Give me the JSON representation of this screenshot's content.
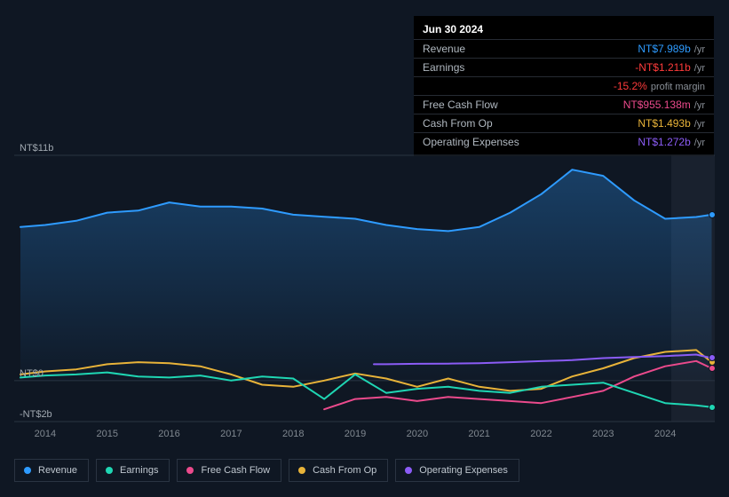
{
  "chart": {
    "type": "line-area",
    "x_years": [
      "2014",
      "2015",
      "2016",
      "2017",
      "2018",
      "2019",
      "2020",
      "2021",
      "2022",
      "2023",
      "2024"
    ],
    "x_start": 2013.5,
    "x_end": 2024.8,
    "future_shade_from": 2024.1,
    "y_labels": [
      {
        "text": "NT$11b",
        "val": 11
      },
      {
        "text": "NT$0",
        "val": 0
      },
      {
        "text": "-NT$2b",
        "val": -2
      }
    ],
    "y_min": -2,
    "y_max": 11,
    "colors": {
      "revenue": "#2e9bff",
      "earnings": "#1fd6b3",
      "fcf": "#eb4a8c",
      "cfo": "#e8b339",
      "opex": "#8b5cf6",
      "bg": "#0f1723",
      "grid": "#2a3442",
      "area_top": "rgba(46,155,255,0.30)",
      "area_bottom": "rgba(46,155,255,0.02)"
    },
    "line_width": 2,
    "series": {
      "revenue": {
        "label": "Revenue",
        "data": [
          [
            2013.6,
            7.5
          ],
          [
            2014,
            7.6
          ],
          [
            2014.5,
            7.8
          ],
          [
            2015,
            8.2
          ],
          [
            2015.5,
            8.3
          ],
          [
            2016,
            8.7
          ],
          [
            2016.5,
            8.5
          ],
          [
            2017,
            8.5
          ],
          [
            2017.5,
            8.4
          ],
          [
            2018,
            8.1
          ],
          [
            2018.5,
            8.0
          ],
          [
            2019,
            7.9
          ],
          [
            2019.5,
            7.6
          ],
          [
            2020,
            7.4
          ],
          [
            2020.5,
            7.3
          ],
          [
            2021,
            7.5
          ],
          [
            2021.5,
            8.2
          ],
          [
            2022,
            9.1
          ],
          [
            2022.25,
            9.7
          ],
          [
            2022.5,
            10.3
          ],
          [
            2023,
            10.0
          ],
          [
            2023.5,
            8.8
          ],
          [
            2024,
            7.9
          ],
          [
            2024.5,
            7.989
          ],
          [
            2024.75,
            8.1
          ]
        ]
      },
      "earnings": {
        "label": "Earnings",
        "data": [
          [
            2013.6,
            0.15
          ],
          [
            2014,
            0.25
          ],
          [
            2014.5,
            0.3
          ],
          [
            2015,
            0.4
          ],
          [
            2015.5,
            0.2
          ],
          [
            2016,
            0.15
          ],
          [
            2016.5,
            0.25
          ],
          [
            2017,
            0.0
          ],
          [
            2017.5,
            0.2
          ],
          [
            2018,
            0.1
          ],
          [
            2018.5,
            -0.9
          ],
          [
            2019,
            0.3
          ],
          [
            2019.5,
            -0.6
          ],
          [
            2020,
            -0.4
          ],
          [
            2020.5,
            -0.3
          ],
          [
            2021,
            -0.5
          ],
          [
            2021.5,
            -0.6
          ],
          [
            2022,
            -0.3
          ],
          [
            2022.5,
            -0.2
          ],
          [
            2023,
            -0.1
          ],
          [
            2023.5,
            -0.6
          ],
          [
            2024,
            -1.1
          ],
          [
            2024.5,
            -1.211
          ],
          [
            2024.75,
            -1.3
          ]
        ]
      },
      "fcf": {
        "label": "Free Cash Flow",
        "data": [
          [
            2018.5,
            -1.4
          ],
          [
            2019,
            -0.9
          ],
          [
            2019.5,
            -0.8
          ],
          [
            2020,
            -1.0
          ],
          [
            2020.5,
            -0.8
          ],
          [
            2021,
            -0.9
          ],
          [
            2021.5,
            -1.0
          ],
          [
            2022,
            -1.1
          ],
          [
            2022.5,
            -0.8
          ],
          [
            2023,
            -0.5
          ],
          [
            2023.5,
            0.2
          ],
          [
            2024,
            0.7
          ],
          [
            2024.5,
            0.955
          ],
          [
            2024.75,
            0.6
          ]
        ]
      },
      "cfo": {
        "label": "Cash From Op",
        "data": [
          [
            2013.6,
            0.3
          ],
          [
            2014,
            0.45
          ],
          [
            2014.5,
            0.55
          ],
          [
            2015,
            0.8
          ],
          [
            2015.5,
            0.9
          ],
          [
            2016,
            0.85
          ],
          [
            2016.5,
            0.7
          ],
          [
            2017,
            0.3
          ],
          [
            2017.5,
            -0.2
          ],
          [
            2018,
            -0.3
          ],
          [
            2018.5,
            0.0
          ],
          [
            2019,
            0.35
          ],
          [
            2019.5,
            0.1
          ],
          [
            2020,
            -0.3
          ],
          [
            2020.5,
            0.1
          ],
          [
            2021,
            -0.3
          ],
          [
            2021.5,
            -0.5
          ],
          [
            2022,
            -0.4
          ],
          [
            2022.5,
            0.2
          ],
          [
            2023,
            0.6
          ],
          [
            2023.5,
            1.1
          ],
          [
            2024,
            1.4
          ],
          [
            2024.5,
            1.493
          ],
          [
            2024.75,
            0.9
          ]
        ]
      },
      "opex": {
        "label": "Operating Expenses",
        "data": [
          [
            2019.3,
            0.8
          ],
          [
            2019.5,
            0.8
          ],
          [
            2020,
            0.82
          ],
          [
            2020.5,
            0.83
          ],
          [
            2021,
            0.85
          ],
          [
            2021.5,
            0.9
          ],
          [
            2022,
            0.95
          ],
          [
            2022.5,
            1.0
          ],
          [
            2023,
            1.1
          ],
          [
            2023.5,
            1.15
          ],
          [
            2024,
            1.2
          ],
          [
            2024.5,
            1.272
          ],
          [
            2024.75,
            1.1
          ]
        ]
      }
    }
  },
  "tooltip": {
    "title": "Jun 30 2024",
    "rows": [
      {
        "label": "Revenue",
        "value": "NT$7.989b",
        "suffix": "/yr",
        "color": "#2e9bff"
      },
      {
        "label": "Earnings",
        "value": "-NT$1.211b",
        "suffix": "/yr",
        "color": "#ff3b3b"
      },
      {
        "label": "",
        "value": "-15.2%",
        "suffix": "profit margin",
        "color": "#ff3b3b"
      },
      {
        "label": "Free Cash Flow",
        "value": "NT$955.138m",
        "suffix": "/yr",
        "color": "#eb4a8c"
      },
      {
        "label": "Cash From Op",
        "value": "NT$1.493b",
        "suffix": "/yr",
        "color": "#e8b339"
      },
      {
        "label": "Operating Expenses",
        "value": "NT$1.272b",
        "suffix": "/yr",
        "color": "#8b5cf6"
      }
    ]
  },
  "legend": [
    {
      "label": "Revenue",
      "color": "#2e9bff"
    },
    {
      "label": "Earnings",
      "color": "#1fd6b3"
    },
    {
      "label": "Free Cash Flow",
      "color": "#eb4a8c"
    },
    {
      "label": "Cash From Op",
      "color": "#e8b339"
    },
    {
      "label": "Operating Expenses",
      "color": "#8b5cf6"
    }
  ]
}
